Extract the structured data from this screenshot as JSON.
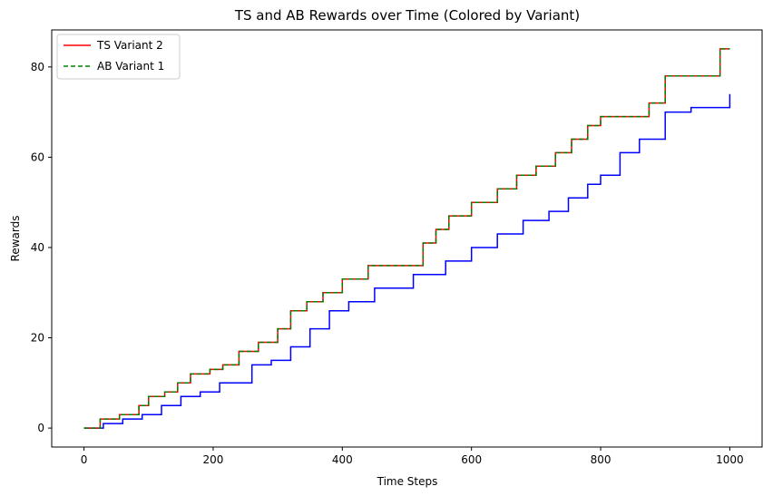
{
  "chart_data": {
    "type": "line",
    "title": "TS and AB Rewards over Time (Colored by Variant)",
    "xlabel": "Time Steps",
    "ylabel": "Rewards",
    "xlim": [
      -50,
      1050
    ],
    "ylim": [
      -4.2,
      88.2
    ],
    "xticks": [
      0,
      200,
      400,
      600,
      800,
      1000
    ],
    "yticks": [
      0,
      20,
      40,
      60,
      80
    ],
    "xtick_labels": [
      "0",
      "200",
      "400",
      "600",
      "800",
      "1000"
    ],
    "ytick_labels": [
      "0",
      "20",
      "40",
      "60",
      "80"
    ],
    "grid": false,
    "legend_position": "top-left",
    "legend": [
      {
        "label": "TS Variant 2",
        "color": "#ff0000",
        "style": "solid"
      },
      {
        "label": "AB Variant 1",
        "color": "#008000",
        "style": "dashed"
      }
    ],
    "series": [
      {
        "name": "TS Variant 2",
        "color": "#ff0000",
        "style": "solid",
        "x": [
          0,
          25,
          55,
          85,
          100,
          125,
          145,
          165,
          195,
          215,
          240,
          270,
          300,
          320,
          345,
          370,
          400,
          440,
          510,
          525,
          545,
          565,
          600,
          640,
          670,
          700,
          730,
          755,
          780,
          800,
          865,
          875,
          900,
          950,
          985,
          1000
        ],
        "y": [
          0,
          2,
          3,
          5,
          7,
          8,
          10,
          12,
          13,
          14,
          17,
          19,
          22,
          26,
          28,
          30,
          33,
          36,
          36,
          41,
          44,
          47,
          50,
          53,
          56,
          58,
          61,
          64,
          67,
          69,
          69,
          72,
          78,
          78,
          84,
          84
        ]
      },
      {
        "name": "AB Variant 1",
        "color": "#008000",
        "style": "dashed",
        "x": [
          0,
          25,
          55,
          85,
          100,
          125,
          145,
          165,
          195,
          215,
          240,
          270,
          300,
          320,
          345,
          370,
          400,
          440,
          510,
          525,
          545,
          565,
          600,
          640,
          670,
          700,
          730,
          755,
          780,
          800,
          865,
          875,
          900,
          950,
          985,
          1000
        ],
        "y": [
          0,
          2,
          3,
          5,
          7,
          8,
          10,
          12,
          13,
          14,
          17,
          19,
          22,
          26,
          28,
          30,
          33,
          36,
          36,
          41,
          44,
          47,
          50,
          53,
          56,
          58,
          61,
          64,
          67,
          69,
          69,
          72,
          78,
          78,
          84,
          84
        ]
      },
      {
        "color": "#0000ff",
        "style": "solid",
        "x": [
          0,
          30,
          60,
          90,
          120,
          150,
          180,
          210,
          230,
          260,
          290,
          320,
          350,
          380,
          410,
          450,
          510,
          535,
          560,
          600,
          640,
          680,
          720,
          750,
          780,
          800,
          830,
          860,
          900,
          940,
          985,
          1000
        ],
        "y": [
          0,
          1,
          2,
          3,
          5,
          7,
          8,
          10,
          10,
          14,
          15,
          18,
          22,
          26,
          28,
          31,
          34,
          34,
          37,
          40,
          43,
          46,
          48,
          51,
          54,
          56,
          61,
          64,
          70,
          71,
          71,
          74
        ]
      }
    ]
  }
}
